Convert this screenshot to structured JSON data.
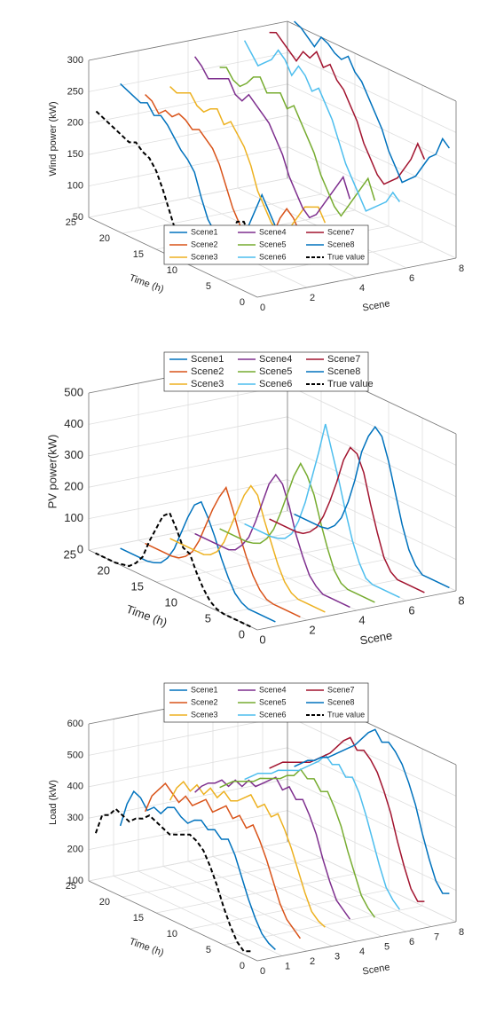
{
  "chart_data": [
    {
      "type": "line3d",
      "zlabel": "Wind power (kW)",
      "ylabel": "Time (h)",
      "xlabel": "Scene",
      "xlim": [
        0,
        8
      ],
      "xticks": [
        0,
        2,
        4,
        6,
        8
      ],
      "ylim": [
        0,
        25
      ],
      "yticks": [
        0,
        5,
        10,
        15,
        20,
        25
      ],
      "zlim": [
        50,
        300
      ],
      "zticks": [
        50,
        100,
        150,
        200,
        250,
        300
      ],
      "grid": true,
      "legend": "lower center",
      "time": [
        1,
        2,
        3,
        4,
        5,
        6,
        7,
        8,
        9,
        10,
        11,
        12,
        13,
        14,
        15,
        16,
        17,
        18,
        19,
        20,
        21,
        22,
        23,
        24
      ],
      "series": [
        {
          "name": "Scene1",
          "color": "#0072bd",
          "style": "solid",
          "values": [
            150,
            170,
            190,
            160,
            130,
            110,
            90,
            85,
            80,
            95,
            110,
            140,
            175,
            190,
            200,
            215,
            230,
            240,
            235,
            250,
            245,
            250,
            255,
            260
          ]
        },
        {
          "name": "Scene2",
          "color": "#d95319",
          "style": "solid",
          "values": [
            130,
            150,
            160,
            140,
            110,
            90,
            80,
            75,
            80,
            100,
            120,
            150,
            180,
            200,
            210,
            220,
            215,
            225,
            230,
            220,
            225,
            215,
            230,
            235
          ]
        },
        {
          "name": "Scene3",
          "color": "#edb120",
          "style": "solid",
          "values": [
            140,
            160,
            155,
            150,
            130,
            110,
            95,
            90,
            100,
            120,
            140,
            175,
            200,
            215,
            230,
            220,
            240,
            235,
            225,
            230,
            245,
            240,
            235,
            240
          ]
        },
        {
          "name": "Scene4",
          "color": "#7e2f8e",
          "style": "solid",
          "values": [
            170,
            200,
            180,
            160,
            140,
            120,
            110,
            120,
            140,
            160,
            190,
            210,
            230,
            240,
            250,
            260,
            245,
            250,
            270,
            265,
            260,
            255,
            270,
            280
          ]
        },
        {
          "name": "Scene5",
          "color": "#77ac30",
          "style": "solid",
          "values": [
            160,
            190,
            170,
            150,
            130,
            110,
            120,
            140,
            160,
            190,
            210,
            230,
            250,
            240,
            260,
            255,
            250,
            270,
            265,
            250,
            240,
            245,
            260,
            255
          ]
        },
        {
          "name": "Scene6",
          "color": "#4dbeee",
          "style": "solid",
          "values": [
            150,
            160,
            140,
            130,
            120,
            110,
            130,
            150,
            170,
            200,
            230,
            250,
            270,
            260,
            280,
            290,
            270,
            290,
            300,
            280,
            270,
            260,
            275,
            290
          ]
        },
        {
          "name": "Scene7",
          "color": "#a2142f",
          "style": "solid",
          "values": [
            210,
            230,
            200,
            180,
            160,
            150,
            140,
            150,
            170,
            190,
            220,
            240,
            260,
            270,
            290,
            280,
            300,
            285,
            290,
            270,
            280,
            290,
            300,
            295
          ]
        },
        {
          "name": "Scene8",
          "color": "#0072bd",
          "style": "solid",
          "values": [
            220,
            230,
            200,
            190,
            170,
            150,
            140,
            130,
            150,
            170,
            200,
            220,
            240,
            260,
            270,
            290,
            280,
            285,
            295,
            300,
            280,
            290,
            300,
            305
          ]
        },
        {
          "name": "True value",
          "color": "#000000",
          "style": "dashed",
          "values": [
            140,
            160,
            155,
            130,
            115,
            95,
            80,
            65,
            58,
            60,
            70,
            90,
            120,
            150,
            175,
            190,
            195,
            205,
            200,
            205,
            210,
            215,
            220,
            225
          ]
        }
      ]
    },
    {
      "type": "line3d",
      "zlabel": "PV power(kW)",
      "ylabel": "Time (h)",
      "xlabel": "Scene",
      "xlim": [
        0,
        8
      ],
      "xticks": [
        0,
        2,
        4,
        6,
        8
      ],
      "ylim": [
        0,
        25
      ],
      "yticks": [
        0,
        5,
        10,
        15,
        20,
        25
      ],
      "zlim": [
        0,
        500
      ],
      "zticks": [
        0,
        100,
        200,
        300,
        400,
        500
      ],
      "grid": true,
      "legend": "upper center",
      "time": [
        1,
        2,
        3,
        4,
        5,
        6,
        7,
        8,
        9,
        10,
        11,
        12,
        13,
        14,
        15,
        16,
        17,
        18,
        19,
        20,
        21,
        22,
        23,
        24
      ],
      "series": [
        {
          "name": "Scene1",
          "color": "#0072bd",
          "style": "solid",
          "values": [
            0,
            0,
            0,
            0,
            0,
            10,
            30,
            70,
            120,
            180,
            230,
            270,
            250,
            200,
            140,
            80,
            40,
            15,
            5,
            0,
            0,
            0,
            0,
            0
          ]
        },
        {
          "name": "Scene2",
          "color": "#d95319",
          "style": "solid",
          "values": [
            0,
            0,
            0,
            0,
            0,
            5,
            25,
            60,
            110,
            170,
            240,
            300,
            260,
            210,
            150,
            90,
            45,
            20,
            5,
            0,
            0,
            0,
            0,
            0
          ]
        },
        {
          "name": "Scene3",
          "color": "#edb120",
          "style": "solid",
          "values": [
            0,
            0,
            0,
            0,
            0,
            10,
            35,
            80,
            140,
            200,
            270,
            290,
            250,
            190,
            130,
            70,
            30,
            10,
            0,
            0,
            0,
            0,
            0,
            0
          ]
        },
        {
          "name": "Scene4",
          "color": "#7e2f8e",
          "style": "solid",
          "values": [
            0,
            0,
            0,
            0,
            0,
            15,
            40,
            90,
            150,
            230,
            290,
            310,
            270,
            200,
            130,
            70,
            35,
            10,
            0,
            0,
            0,
            0,
            0,
            0
          ]
        },
        {
          "name": "Scene5",
          "color": "#77ac30",
          "style": "solid",
          "values": [
            0,
            0,
            0,
            0,
            0,
            10,
            40,
            100,
            170,
            250,
            300,
            330,
            280,
            210,
            140,
            80,
            40,
            15,
            5,
            0,
            0,
            0,
            0,
            0
          ]
        },
        {
          "name": "Scene6",
          "color": "#4dbeee",
          "style": "solid",
          "values": [
            0,
            0,
            0,
            0,
            0,
            10,
            50,
            110,
            190,
            280,
            360,
            440,
            340,
            250,
            160,
            90,
            40,
            15,
            5,
            0,
            0,
            0,
            0,
            0
          ]
        },
        {
          "name": "Scene7",
          "color": "#a2142f",
          "style": "solid",
          "values": [
            0,
            0,
            0,
            0,
            0,
            15,
            50,
            120,
            200,
            290,
            340,
            350,
            300,
            220,
            150,
            90,
            45,
            20,
            5,
            0,
            0,
            0,
            0,
            0
          ]
        },
        {
          "name": "Scene8",
          "color": "#0072bd",
          "style": "solid",
          "values": [
            0,
            0,
            0,
            0,
            0,
            20,
            60,
            130,
            220,
            310,
            380,
            400,
            360,
            300,
            200,
            120,
            60,
            25,
            5,
            0,
            0,
            0,
            0,
            0
          ]
        },
        {
          "name": "True value",
          "color": "#000000",
          "style": "dashed",
          "values": [
            0,
            0,
            0,
            0,
            0,
            5,
            20,
            50,
            90,
            140,
            150,
            200,
            240,
            220,
            170,
            120,
            60,
            30,
            10,
            5,
            0,
            0,
            0,
            0
          ]
        }
      ]
    },
    {
      "type": "line3d",
      "zlabel": "Load (kW)",
      "ylabel": "Time (h)",
      "xlabel": "Scene",
      "xlim": [
        0,
        8
      ],
      "xticks": [
        0,
        1,
        2,
        3,
        4,
        5,
        6,
        7,
        8
      ],
      "ylim": [
        0,
        25
      ],
      "yticks": [
        0,
        5,
        10,
        15,
        20,
        25
      ],
      "zlim": [
        100,
        600
      ],
      "zticks": [
        100,
        200,
        300,
        400,
        500,
        600
      ],
      "grid": true,
      "legend": "upper center",
      "time": [
        1,
        2,
        3,
        4,
        5,
        6,
        7,
        8,
        9,
        10,
        11,
        12,
        13,
        14,
        15,
        16,
        17,
        18,
        19,
        20,
        21,
        22,
        23,
        24
      ],
      "series": [
        {
          "name": "Scene1",
          "color": "#0072bd",
          "style": "solid",
          "values": [
            110,
            120,
            140,
            180,
            230,
            290,
            350,
            390,
            380,
            400,
            390,
            410,
            400,
            380,
            390,
            410,
            400,
            370,
            380,
            360,
            390,
            400,
            350,
            270
          ]
        },
        {
          "name": "Scene2",
          "color": "#d95319",
          "style": "solid",
          "values": [
            130,
            150,
            170,
            210,
            270,
            330,
            380,
            420,
            400,
            430,
            410,
            440,
            420,
            400,
            430,
            410,
            390,
            410,
            380,
            400,
            420,
            390,
            360,
            300
          ]
        },
        {
          "name": "Scene3",
          "color": "#edb120",
          "style": "solid",
          "values": [
            150,
            160,
            180,
            230,
            290,
            350,
            400,
            440,
            420,
            450,
            430,
            460,
            440,
            420,
            410,
            430,
            400,
            420,
            390,
            410,
            380,
            400,
            370,
            320
          ]
        },
        {
          "name": "Scene4",
          "color": "#7e2f8e",
          "style": "solid",
          "values": [
            160,
            180,
            200,
            250,
            310,
            380,
            430,
            470,
            460,
            490,
            470,
            500,
            480,
            460,
            440,
            450,
            420,
            430,
            400,
            410,
            390,
            380,
            360,
            330
          ]
        },
        {
          "name": "Scene5",
          "color": "#77ac30",
          "style": "solid",
          "values": [
            150,
            170,
            200,
            260,
            320,
            390,
            440,
            480,
            470,
            500,
            490,
            510,
            480,
            470,
            450,
            440,
            430,
            420,
            400,
            390,
            380,
            370,
            350,
            330
          ]
        },
        {
          "name": "Scene6",
          "color": "#4dbeee",
          "style": "solid",
          "values": [
            160,
            180,
            210,
            270,
            340,
            410,
            470,
            510,
            500,
            530,
            520,
            540,
            510,
            490,
            470,
            450,
            440,
            430,
            420,
            400,
            390,
            380,
            360,
            340
          ]
        },
        {
          "name": "Scene7",
          "color": "#a2142f",
          "style": "solid",
          "values": [
            170,
            160,
            190,
            250,
            320,
            400,
            460,
            510,
            540,
            560,
            550,
            580,
            560,
            530,
            500,
            480,
            460,
            440,
            430,
            420,
            410,
            400,
            380,
            360
          ]
        },
        {
          "name": "Scene8",
          "color": "#0072bd",
          "style": "solid",
          "values": [
            180,
            170,
            200,
            260,
            330,
            410,
            470,
            520,
            550,
            570,
            560,
            590,
            570,
            540,
            510,
            490,
            470,
            450,
            430,
            420,
            400,
            390,
            370,
            350
          ]
        },
        {
          "name": "True value",
          "color": "#000000",
          "style": "dashed",
          "values": [
            120,
            110,
            130,
            170,
            220,
            280,
            330,
            370,
            390,
            400,
            390,
            380,
            370,
            380,
            390,
            400,
            380,
            370,
            350,
            360,
            370,
            340,
            330,
            260
          ]
        }
      ]
    }
  ]
}
